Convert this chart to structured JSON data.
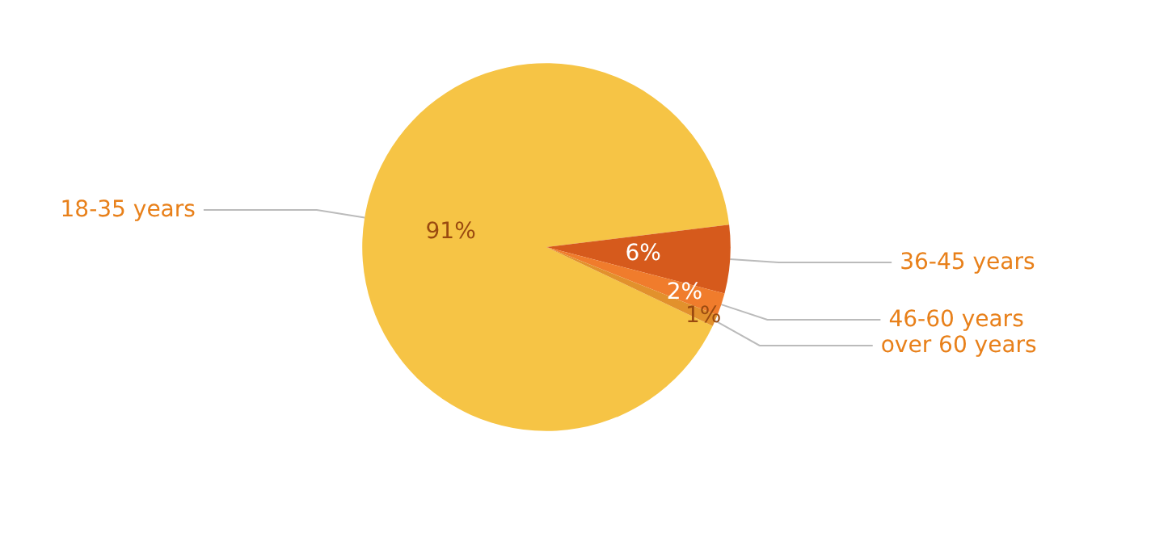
{
  "chart_data": {
    "type": "pie",
    "categories": [
      "18-35 years",
      "36-45 years",
      "46-60 years",
      "over 60 years"
    ],
    "values": [
      91,
      6,
      2,
      1
    ],
    "colors": [
      "#f6c445",
      "#d65a1c",
      "#f07c2c",
      "#e2912c"
    ],
    "value_labels": [
      "91%",
      "6%",
      "2%",
      "1%"
    ]
  }
}
